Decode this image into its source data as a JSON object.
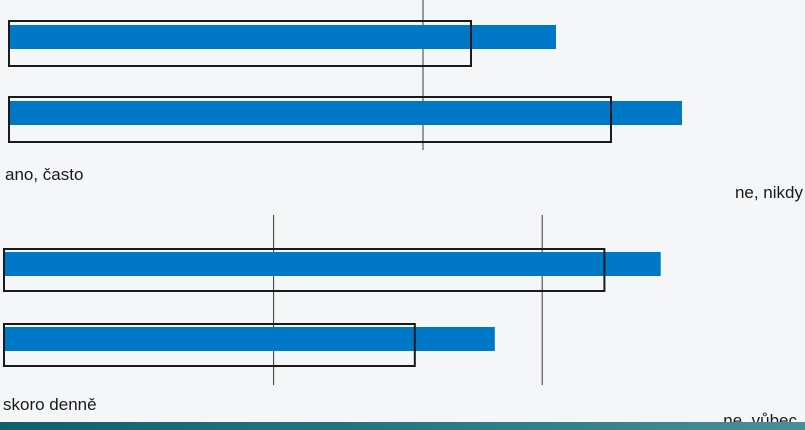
{
  "chart_data": [
    {
      "type": "bar",
      "orientation": "horizontal",
      "scale_labels": {
        "left": "ano, často",
        "right": "ne, nikdy"
      },
      "reference_lines": [
        0.59
      ],
      "rows": [
        {
          "bar": 0.78,
          "box": 0.66
        },
        {
          "bar": 0.96,
          "box": 0.86
        }
      ],
      "colors": {
        "bar": "#0078c8",
        "box": "#1a1a1a"
      }
    },
    {
      "type": "bar",
      "orientation": "horizontal",
      "scale_labels": {
        "left": "skoro denně",
        "right": "ne, vůbec"
      },
      "reference_lines": [
        0.34,
        0.68
      ],
      "rows": [
        {
          "bar": 0.83,
          "box": 0.76
        },
        {
          "bar": 0.62,
          "box": 0.52
        }
      ],
      "colors": {
        "bar": "#0078c8",
        "box": "#1a1a1a"
      }
    }
  ]
}
